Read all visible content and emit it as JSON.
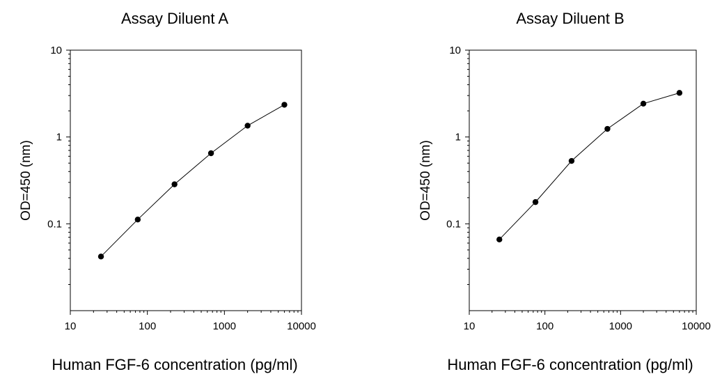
{
  "chart_data": [
    {
      "type": "line",
      "title": "Assay Diluent A",
      "xlabel": "Human FGF-6 concentration (pg/ml)",
      "ylabel": "OD=450 (nm)",
      "xscale": "log",
      "yscale": "log",
      "xlim": [
        10,
        10000
      ],
      "ylim": [
        0.01,
        10
      ],
      "xticks": [
        10,
        100,
        1000,
        10000
      ],
      "xtick_labels": [
        "10",
        "100",
        "1000",
        "10000"
      ],
      "yticks": [
        0.1,
        1,
        10
      ],
      "ytick_labels": [
        "0.1",
        "1",
        "10"
      ],
      "grid": false,
      "markers": "filled-circle",
      "series": [
        {
          "x": [
            25,
            75,
            225,
            670,
            2000,
            6000
          ],
          "y": [
            0.042,
            0.112,
            0.285,
            0.65,
            1.35,
            2.35
          ]
        }
      ]
    },
    {
      "type": "line",
      "title": "Assay Diluent B",
      "xlabel": "Human FGF-6 concentration (pg/ml)",
      "ylabel": "OD=450 (nm)",
      "xscale": "log",
      "yscale": "log",
      "xlim": [
        10,
        10000
      ],
      "ylim": [
        0.01,
        10
      ],
      "xticks": [
        10,
        100,
        1000,
        10000
      ],
      "xtick_labels": [
        "10",
        "100",
        "1000",
        "10000"
      ],
      "yticks": [
        0.1,
        1,
        10
      ],
      "ytick_labels": [
        "0.1",
        "1",
        "10"
      ],
      "grid": false,
      "markers": "filled-circle",
      "series": [
        {
          "x": [
            25,
            75,
            225,
            670,
            2000,
            6000
          ],
          "y": [
            0.066,
            0.178,
            0.53,
            1.24,
            2.42,
            3.22
          ]
        }
      ]
    }
  ]
}
